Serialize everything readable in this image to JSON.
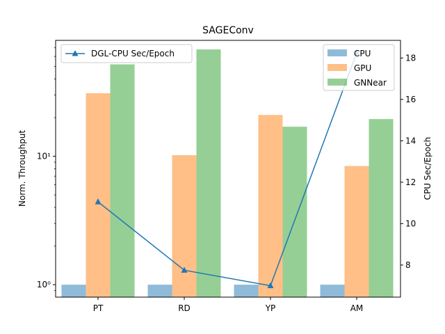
{
  "chart_data": {
    "type": "bar",
    "title": "SAGEConv",
    "categories": [
      "PT",
      "RD",
      "YP",
      "AM"
    ],
    "ylabel": "Norm. Throughput",
    "y_scale": "log",
    "ylim": [
      0.8,
      80
    ],
    "y_ticks": [
      1,
      10
    ],
    "y_tick_labels": [
      "10⁰",
      "10¹"
    ],
    "series": [
      {
        "name": "CPU",
        "values": [
          1.0,
          1.0,
          1.0,
          1.0
        ],
        "color": "#1f77b4",
        "opacity": 0.5
      },
      {
        "name": "GPU",
        "values": [
          31.0,
          10.2,
          21.0,
          8.4
        ],
        "color": "#ff7f0e",
        "opacity": 0.5
      },
      {
        "name": "GNNear",
        "values": [
          52.0,
          68.0,
          17.0,
          19.5
        ],
        "color": "#2ca02c",
        "opacity": 0.5
      }
    ],
    "legend_position": "top-right",
    "secondary": {
      "type": "line",
      "name": "DGL-CPU Sec/Epoch",
      "values": [
        11.05,
        7.75,
        7.0,
        18.25
      ],
      "color": "#1f77b4",
      "marker": "triangle",
      "ylabel": "CPU Sec/Epoch",
      "ylim": [
        6.45,
        18.85
      ],
      "y_ticks": [
        8,
        10,
        12,
        14,
        16,
        18
      ],
      "legend_position": "top-left"
    }
  }
}
